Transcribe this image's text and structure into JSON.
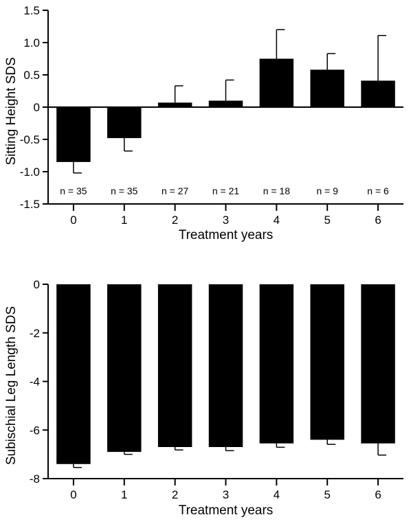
{
  "chart_data": [
    {
      "type": "bar",
      "xlabel": "Treatment years",
      "ylabel": "Sitting Height SDS",
      "categories": [
        "0",
        "1",
        "2",
        "3",
        "4",
        "5",
        "6"
      ],
      "values": [
        -0.85,
        -0.48,
        0.07,
        0.1,
        0.75,
        0.58,
        0.41
      ],
      "error_bars": [
        0.17,
        0.2,
        0.26,
        0.32,
        0.45,
        0.25,
        0.7
      ],
      "error_direction": "away-from-zero",
      "annotations": [
        "n = 35",
        "n = 35",
        "n = 27",
        "n = 21",
        "n = 18",
        "n = 9",
        "n = 6"
      ],
      "ylim": [
        -1.5,
        1.5
      ],
      "yticks": [
        "1.5",
        "1.0",
        "0.5",
        "0",
        "-0.5",
        "-1.0",
        "-1.5"
      ],
      "ytick_values": [
        1.5,
        1.0,
        0.5,
        0,
        -0.5,
        -1.0,
        -1.5
      ],
      "bar_color": "#000000",
      "grid": false
    },
    {
      "type": "bar",
      "xlabel": "Treatment years",
      "ylabel": "Subischial Leg Length SDS",
      "categories": [
        "0",
        "1",
        "2",
        "3",
        "4",
        "5",
        "6"
      ],
      "values": [
        -7.4,
        -6.9,
        -6.7,
        -6.7,
        -6.55,
        -6.4,
        -6.55
      ],
      "error_bars": [
        0.14,
        0.1,
        0.12,
        0.15,
        0.16,
        0.19,
        0.48
      ],
      "error_direction": "away-from-zero",
      "ylim": [
        -8,
        0
      ],
      "yticks": [
        "0",
        "-2",
        "-4",
        "-6",
        "-8"
      ],
      "ytick_values": [
        0,
        -2,
        -4,
        -6,
        -8
      ],
      "bar_color": "#000000",
      "grid": false
    }
  ]
}
